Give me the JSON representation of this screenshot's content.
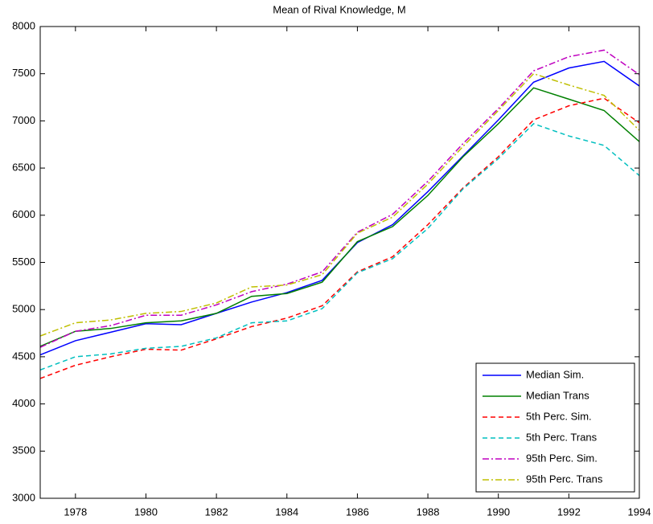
{
  "chart_data": {
    "type": "line",
    "title": "Mean of Rival Knowledge, M",
    "x": [
      1977,
      1978,
      1979,
      1980,
      1981,
      1982,
      1983,
      1984,
      1985,
      1986,
      1987,
      1988,
      1989,
      1990,
      1991,
      1992,
      1993,
      1994
    ],
    "series": [
      {
        "name": "Median Sim.",
        "color": "#0000ff",
        "line_style": "solid",
        "values": [
          4520,
          4670,
          4760,
          4850,
          4840,
          4960,
          5080,
          5180,
          5310,
          5710,
          5900,
          6250,
          6630,
          7010,
          7410,
          7560,
          7630,
          7370
        ]
      },
      {
        "name": "Median Trans",
        "color": "#008000",
        "line_style": "solid",
        "values": [
          4610,
          4770,
          4800,
          4860,
          4880,
          4960,
          5140,
          5170,
          5290,
          5720,
          5880,
          6210,
          6620,
          6970,
          7350,
          7230,
          7110,
          6780
        ]
      },
      {
        "name": "5th Perc. Sim.",
        "color": "#ff0000",
        "line_style": "dashed",
        "values": [
          4270,
          4410,
          4500,
          4580,
          4570,
          4690,
          4820,
          4910,
          5040,
          5400,
          5560,
          5900,
          6290,
          6620,
          7010,
          7160,
          7240,
          6980
        ]
      },
      {
        "name": "5th Perc. Trans",
        "color": "#00bfbf",
        "line_style": "dashed",
        "values": [
          4360,
          4500,
          4530,
          4590,
          4610,
          4700,
          4860,
          4880,
          5010,
          5390,
          5540,
          5860,
          6280,
          6600,
          6970,
          6840,
          6740,
          6420
        ]
      },
      {
        "name": "95th Perc. Sim.",
        "color": "#bf00bf",
        "line_style": "dash-dot",
        "values": [
          4600,
          4770,
          4830,
          4940,
          4940,
          5050,
          5190,
          5270,
          5400,
          5820,
          6010,
          6360,
          6760,
          7130,
          7530,
          7680,
          7750,
          7490
        ]
      },
      {
        "name": "95th Perc. Trans",
        "color": "#bfbf00",
        "line_style": "dash-dot",
        "values": [
          4720,
          4860,
          4890,
          4960,
          4980,
          5070,
          5240,
          5260,
          5370,
          5810,
          5980,
          6330,
          6730,
          7110,
          7500,
          7380,
          7270,
          6900
        ]
      }
    ],
    "xlim": [
      1977,
      1994
    ],
    "xticks": [
      1978,
      1980,
      1982,
      1984,
      1986,
      1988,
      1990,
      1992,
      1994
    ],
    "ylim": [
      3000,
      8000
    ],
    "yticks": [
      3000,
      3500,
      4000,
      4500,
      5000,
      5500,
      6000,
      6500,
      7000,
      7500,
      8000
    ],
    "grid": false,
    "legend": "lower-right"
  }
}
